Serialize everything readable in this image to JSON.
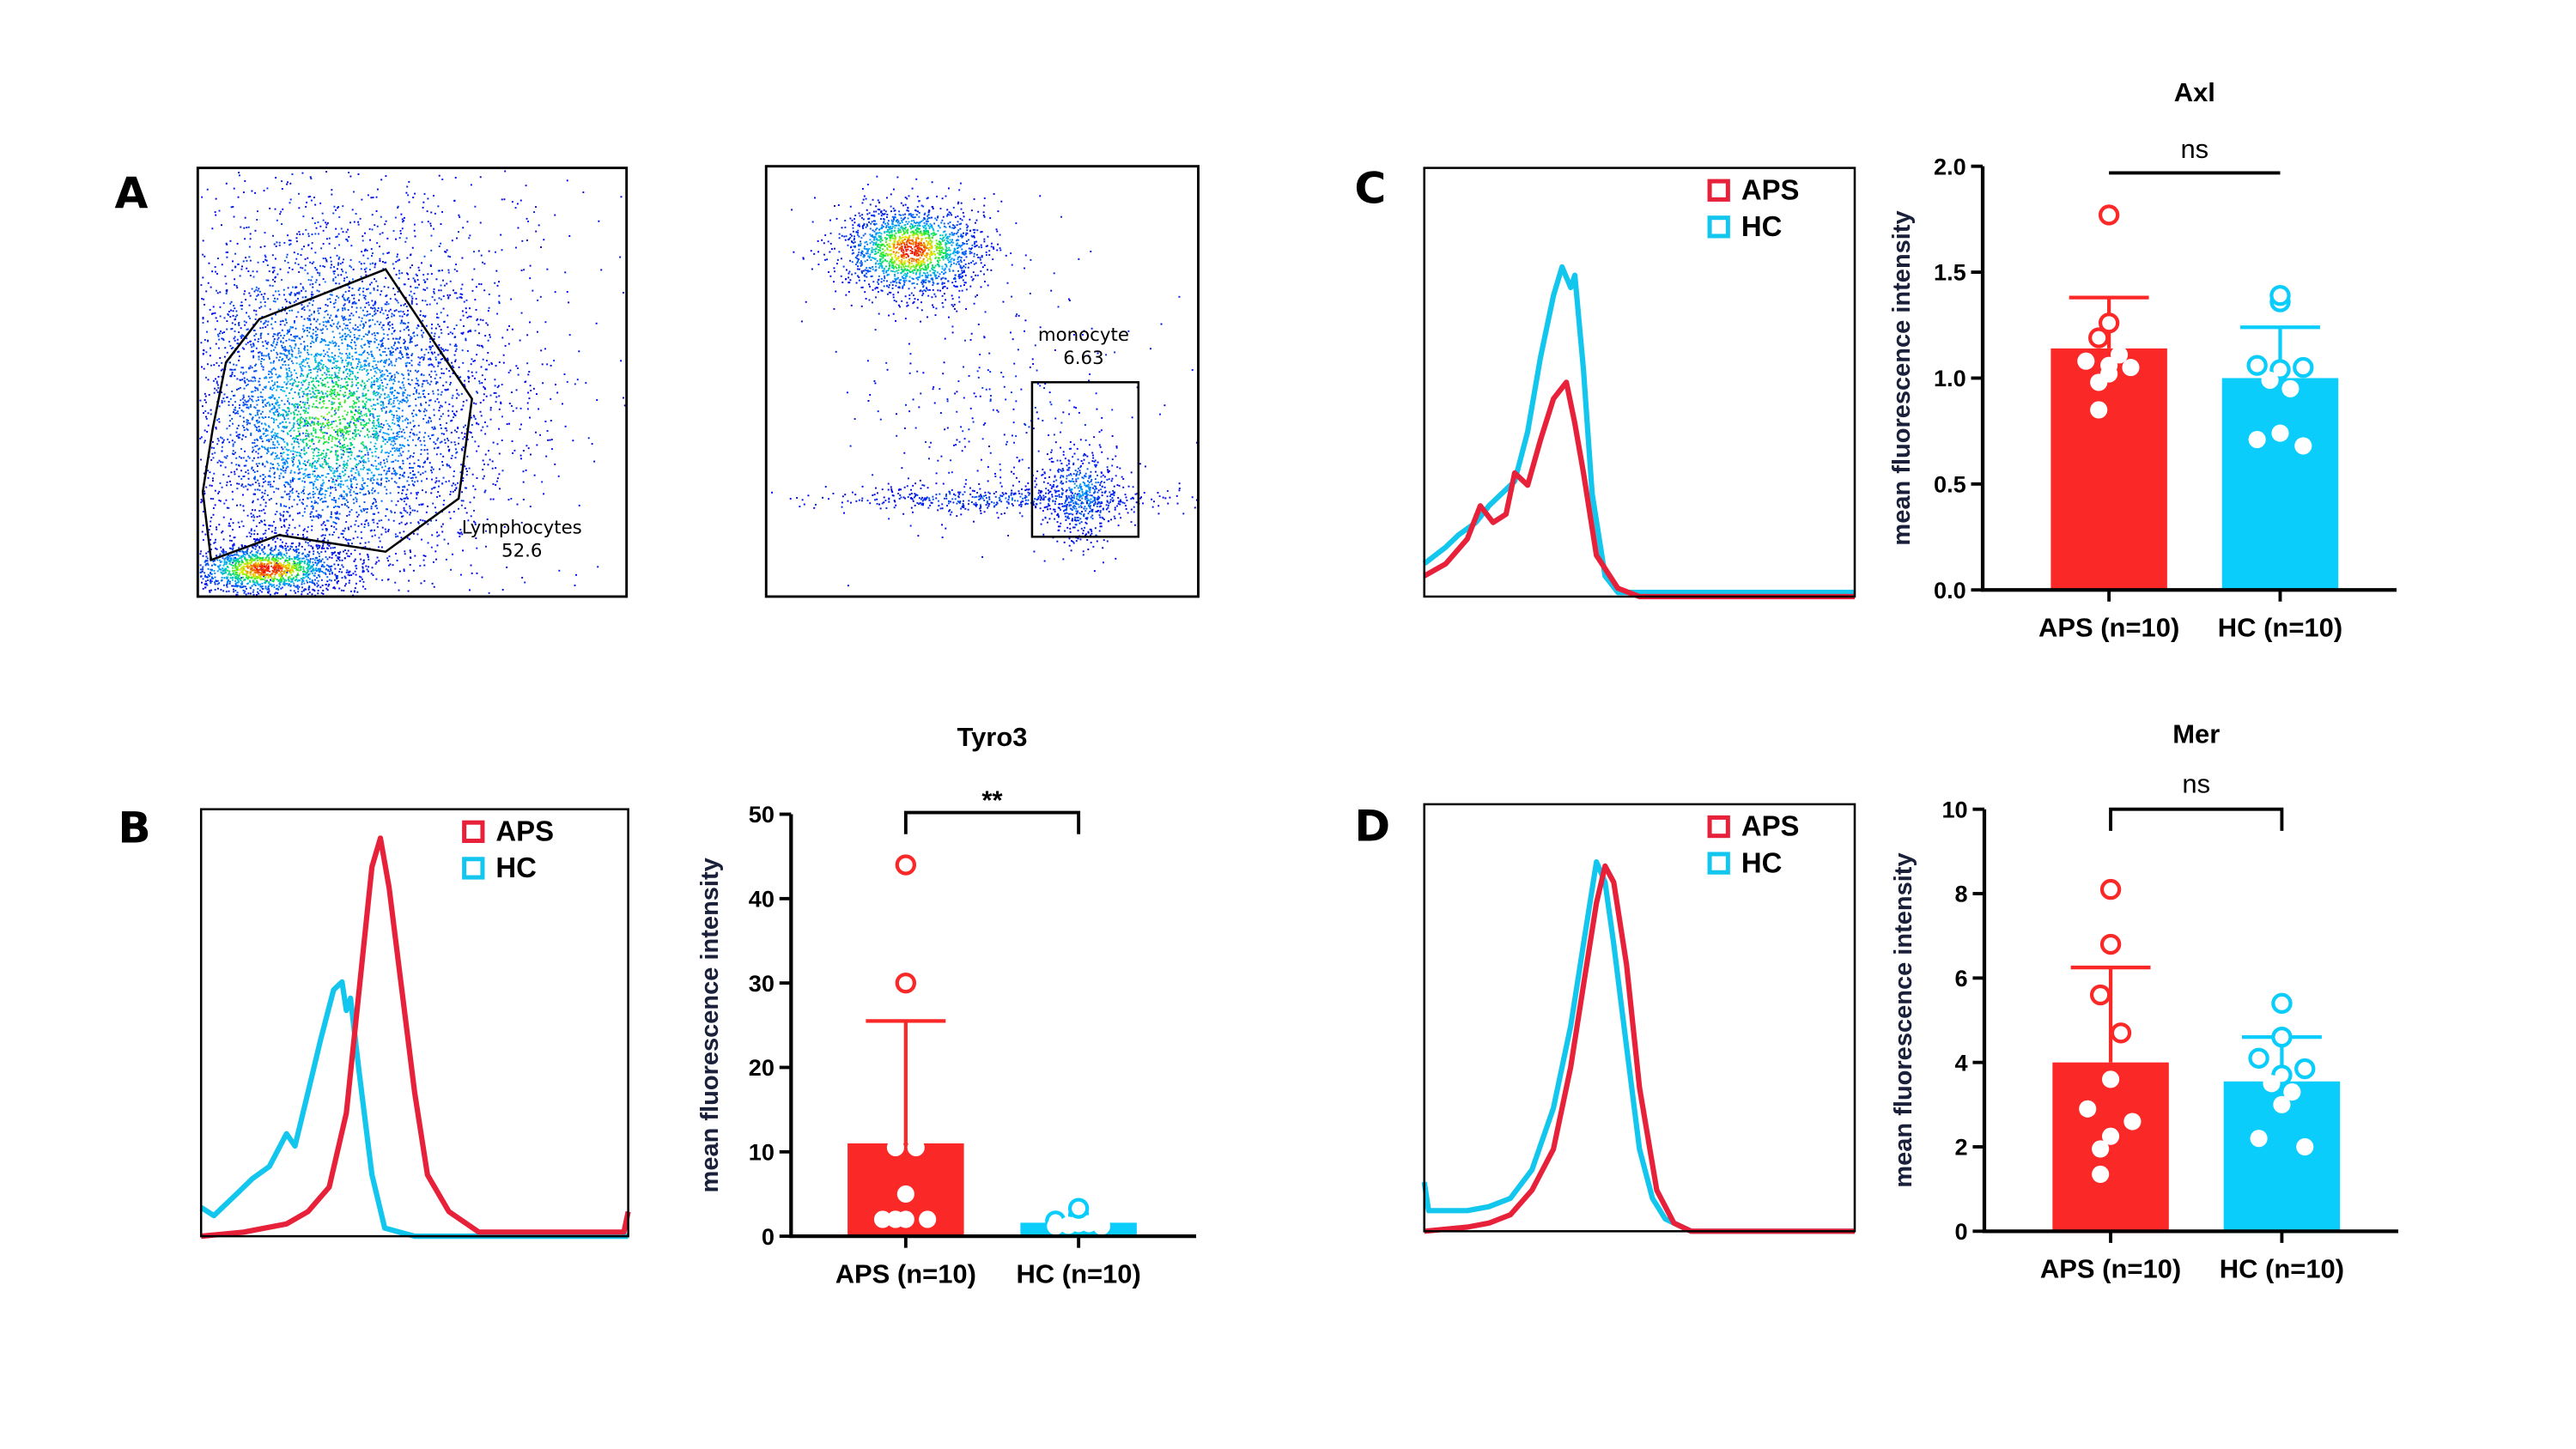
{
  "colors": {
    "aps": "#fb2828",
    "hc": "#0bcdfb",
    "aps_line": "#e8213a",
    "hc_line": "#12c6ee",
    "axis": "#000000"
  },
  "panels": {
    "A": "A",
    "B": "B",
    "C": "C",
    "D": "D"
  },
  "flow": {
    "lymphocyte_gate": {
      "name": "Lymphocytes",
      "value": "52.6"
    },
    "monocyte_gate": {
      "name": "monocyte",
      "value": "6.63"
    }
  },
  "legend": {
    "aps": "APS",
    "hc": "HC"
  },
  "chart_data": [
    {
      "id": "histogram-B",
      "type": "line",
      "series": [
        {
          "name": "APS",
          "points": [
            [
              0,
              0
            ],
            [
              10,
              1
            ],
            [
              20,
              3
            ],
            [
              25,
              6
            ],
            [
              30,
              12
            ],
            [
              34,
              30
            ],
            [
              37,
              60
            ],
            [
              40,
              90
            ],
            [
              42,
              97
            ],
            [
              44,
              85
            ],
            [
              47,
              60
            ],
            [
              50,
              35
            ],
            [
              53,
              15
            ],
            [
              58,
              6
            ],
            [
              65,
              1
            ],
            [
              99,
              1
            ],
            [
              100,
              6
            ]
          ]
        },
        {
          "name": "HC",
          "points": [
            [
              0,
              7
            ],
            [
              3,
              5
            ],
            [
              8,
              10
            ],
            [
              12,
              14
            ],
            [
              16,
              17
            ],
            [
              20,
              25
            ],
            [
              22,
              22
            ],
            [
              25,
              35
            ],
            [
              28,
              48
            ],
            [
              31,
              60
            ],
            [
              33,
              62
            ],
            [
              34,
              55
            ],
            [
              35,
              58
            ],
            [
              37,
              40
            ],
            [
              40,
              15
            ],
            [
              43,
              2
            ],
            [
              50,
              0
            ],
            [
              100,
              0
            ]
          ]
        }
      ],
      "legend": "top-right"
    },
    {
      "id": "tyro3",
      "type": "bar",
      "title": "Tyro3",
      "ylabel": "mean fluorescence intensity",
      "ylim": [
        0,
        50
      ],
      "yticks": [
        "0",
        "10",
        "20",
        "30",
        "40",
        "50"
      ],
      "categories": [
        "APS (n=10)",
        "HC (n=10)"
      ],
      "means": [
        11,
        1.6
      ],
      "sd_upper": [
        25.5,
        null
      ],
      "points": [
        [
          44,
          30,
          10.5,
          10.5,
          5,
          2,
          2,
          2,
          2,
          2
        ],
        [
          2.5,
          1.5,
          1.8,
          1.2,
          1.6,
          1.3,
          1.5,
          3.3,
          1.2,
          1.2
        ]
      ],
      "significance": "**"
    },
    {
      "id": "histogram-C",
      "type": "line",
      "series": [
        {
          "name": "APS",
          "points": [
            [
              0,
              5
            ],
            [
              5,
              8
            ],
            [
              10,
              14
            ],
            [
              13,
              22
            ],
            [
              16,
              18
            ],
            [
              19,
              20
            ],
            [
              21,
              30
            ],
            [
              24,
              27
            ],
            [
              27,
              38
            ],
            [
              30,
              48
            ],
            [
              33,
              52
            ],
            [
              35,
              42
            ],
            [
              37,
              30
            ],
            [
              40,
              10
            ],
            [
              45,
              2
            ],
            [
              50,
              0
            ],
            [
              100,
              0
            ]
          ]
        },
        {
          "name": "HC",
          "points": [
            [
              0,
              8
            ],
            [
              5,
              12
            ],
            [
              8,
              15
            ],
            [
              12,
              18
            ],
            [
              15,
              22
            ],
            [
              18,
              25
            ],
            [
              21,
              28
            ],
            [
              24,
              40
            ],
            [
              27,
              58
            ],
            [
              30,
              73
            ],
            [
              32,
              80
            ],
            [
              34,
              75
            ],
            [
              35,
              78
            ],
            [
              37,
              55
            ],
            [
              39,
              25
            ],
            [
              42,
              5
            ],
            [
              45,
              1
            ],
            [
              100,
              1
            ]
          ]
        }
      ],
      "legend": "top-right"
    },
    {
      "id": "axl",
      "type": "bar",
      "title": "Axl",
      "ylabel": "mean fluorescence intensity",
      "ylim": [
        0,
        2
      ],
      "yticks": [
        "0.0",
        "0.5",
        "1.0",
        "1.5",
        "2.0"
      ],
      "categories": [
        "APS (n=10)",
        "HC (n=10)"
      ],
      "means": [
        1.14,
        1.0
      ],
      "sd_upper": [
        1.38,
        1.24
      ],
      "points": [
        [
          1.77,
          1.26,
          1.19,
          1.11,
          1.06,
          1.08,
          1.05,
          1.02,
          0.98,
          0.85
        ],
        [
          1.36,
          1.39,
          1.06,
          1.05,
          1.04,
          0.99,
          0.95,
          0.74,
          0.71,
          0.68
        ]
      ],
      "significance": "ns"
    },
    {
      "id": "histogram-D",
      "type": "line",
      "series": [
        {
          "name": "APS",
          "points": [
            [
              0,
              0
            ],
            [
              10,
              1
            ],
            [
              15,
              2
            ],
            [
              20,
              4
            ],
            [
              25,
              10
            ],
            [
              30,
              20
            ],
            [
              34,
              40
            ],
            [
              37,
              60
            ],
            [
              40,
              80
            ],
            [
              42,
              89
            ],
            [
              44,
              85
            ],
            [
              47,
              65
            ],
            [
              50,
              35
            ],
            [
              54,
              10
            ],
            [
              58,
              2
            ],
            [
              62,
              0
            ],
            [
              100,
              0
            ]
          ]
        },
        {
          "name": "HC",
          "points": [
            [
              0,
              12
            ],
            [
              1,
              5
            ],
            [
              5,
              5
            ],
            [
              10,
              5
            ],
            [
              15,
              6
            ],
            [
              20,
              8
            ],
            [
              25,
              15
            ],
            [
              30,
              30
            ],
            [
              34,
              50
            ],
            [
              37,
              70
            ],
            [
              40,
              90
            ],
            [
              42,
              85
            ],
            [
              44,
              70
            ],
            [
              47,
              45
            ],
            [
              50,
              20
            ],
            [
              53,
              8
            ],
            [
              56,
              3
            ],
            [
              62,
              0
            ],
            [
              100,
              0
            ]
          ]
        }
      ],
      "legend": "top-right"
    },
    {
      "id": "mer",
      "type": "bar",
      "title": "Mer",
      "ylabel": "mean fluorescence intensity",
      "ylim": [
        0,
        10
      ],
      "yticks": [
        "0",
        "2",
        "4",
        "6",
        "8",
        "10"
      ],
      "categories": [
        "APS (n=10)",
        "HC (n=10)"
      ],
      "means": [
        4.0,
        3.55
      ],
      "sd_upper": [
        6.25,
        4.6
      ],
      "points": [
        [
          8.1,
          6.8,
          5.6,
          4.7,
          3.6,
          2.9,
          2.6,
          2.25,
          1.95,
          1.35
        ],
        [
          5.4,
          4.6,
          4.1,
          3.85,
          3.7,
          3.5,
          3.3,
          3.0,
          2.2,
          2.0
        ]
      ],
      "significance": "ns"
    }
  ]
}
